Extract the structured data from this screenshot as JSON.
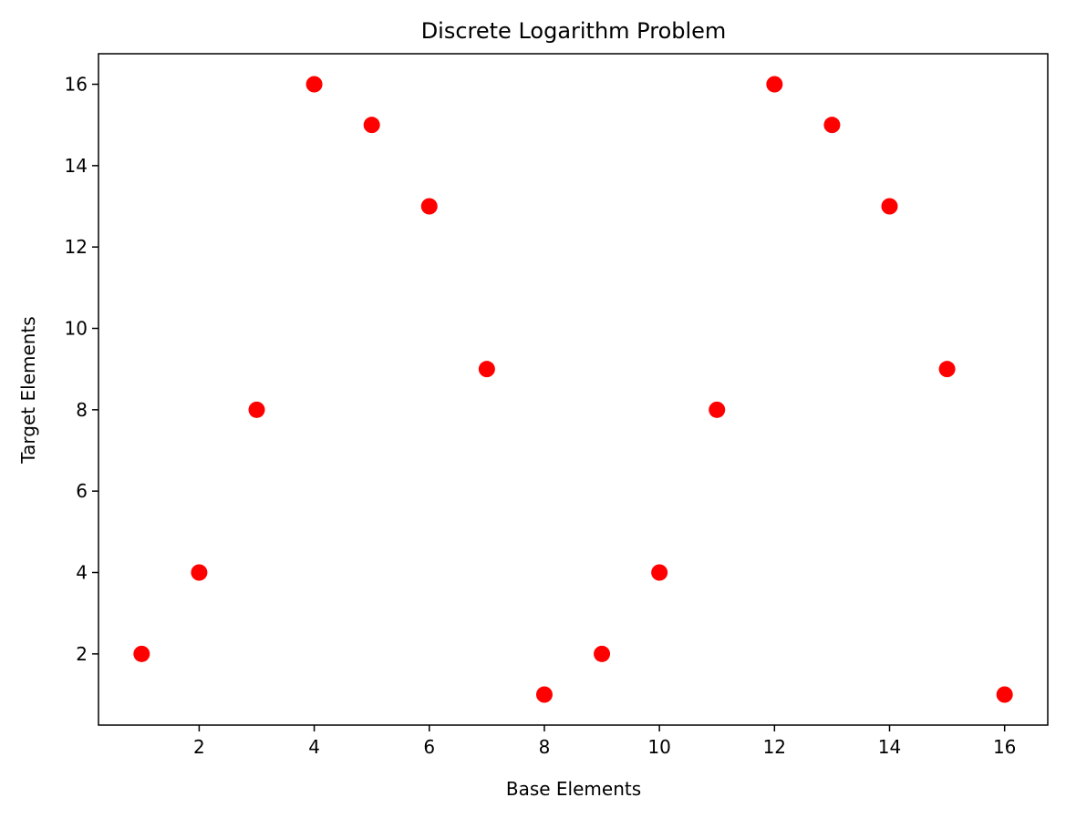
{
  "chart_data": {
    "type": "scatter",
    "title": "Discrete Logarithm Problem",
    "xlabel": "Base Elements",
    "ylabel": "Target Elements",
    "x": [
      1,
      2,
      3,
      4,
      5,
      6,
      7,
      8,
      9,
      10,
      11,
      12,
      13,
      14,
      15,
      16
    ],
    "y": [
      2,
      4,
      8,
      16,
      15,
      13,
      9,
      1,
      2,
      4,
      8,
      16,
      15,
      13,
      9,
      1
    ],
    "xlim": [
      0.25,
      16.75
    ],
    "ylim": [
      0.25,
      16.75
    ],
    "xticks": [
      2,
      4,
      6,
      8,
      10,
      12,
      14,
      16
    ],
    "yticks": [
      2,
      4,
      6,
      8,
      10,
      12,
      14,
      16
    ],
    "marker_color": "#ff0000",
    "grid": false,
    "legend": "none"
  }
}
